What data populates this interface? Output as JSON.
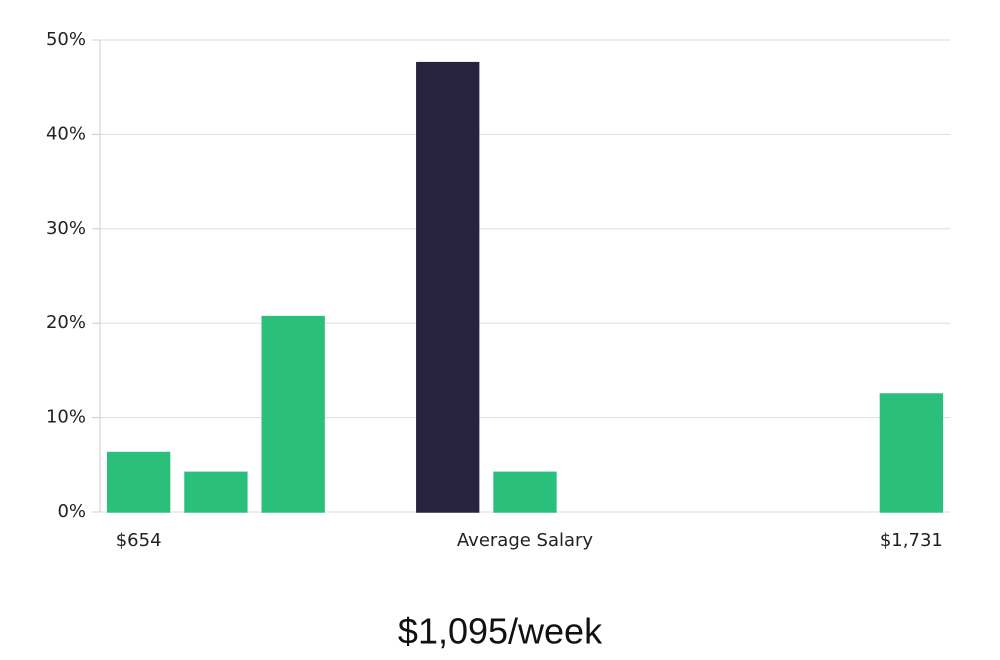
{
  "chart_data": {
    "type": "bar",
    "categories": [
      "$654",
      null,
      null,
      null,
      null,
      "Average Salary",
      null,
      null,
      null,
      null,
      "$1,731"
    ],
    "values": [
      6.3,
      4.2,
      20.7,
      0,
      47.6,
      4.2,
      0,
      0,
      0,
      0,
      12.5
    ],
    "colors": [
      "#2abf7a",
      "#2abf7a",
      "#2abf7a",
      "#2abf7a",
      "#27233f",
      "#2abf7a",
      "#2abf7a",
      "#2abf7a",
      "#2abf7a",
      "#2abf7a",
      "#2abf7a"
    ],
    "ylim": [
      0,
      50
    ],
    "yticks": [
      {
        "value": 0,
        "label": "0%"
      },
      {
        "value": 10,
        "label": "10%"
      },
      {
        "value": 20,
        "label": "20%"
      },
      {
        "value": 30,
        "label": "30%"
      },
      {
        "value": 40,
        "label": "40%"
      },
      {
        "value": 50,
        "label": "50%"
      }
    ],
    "grid": true,
    "annotation": "$1,095/week"
  }
}
